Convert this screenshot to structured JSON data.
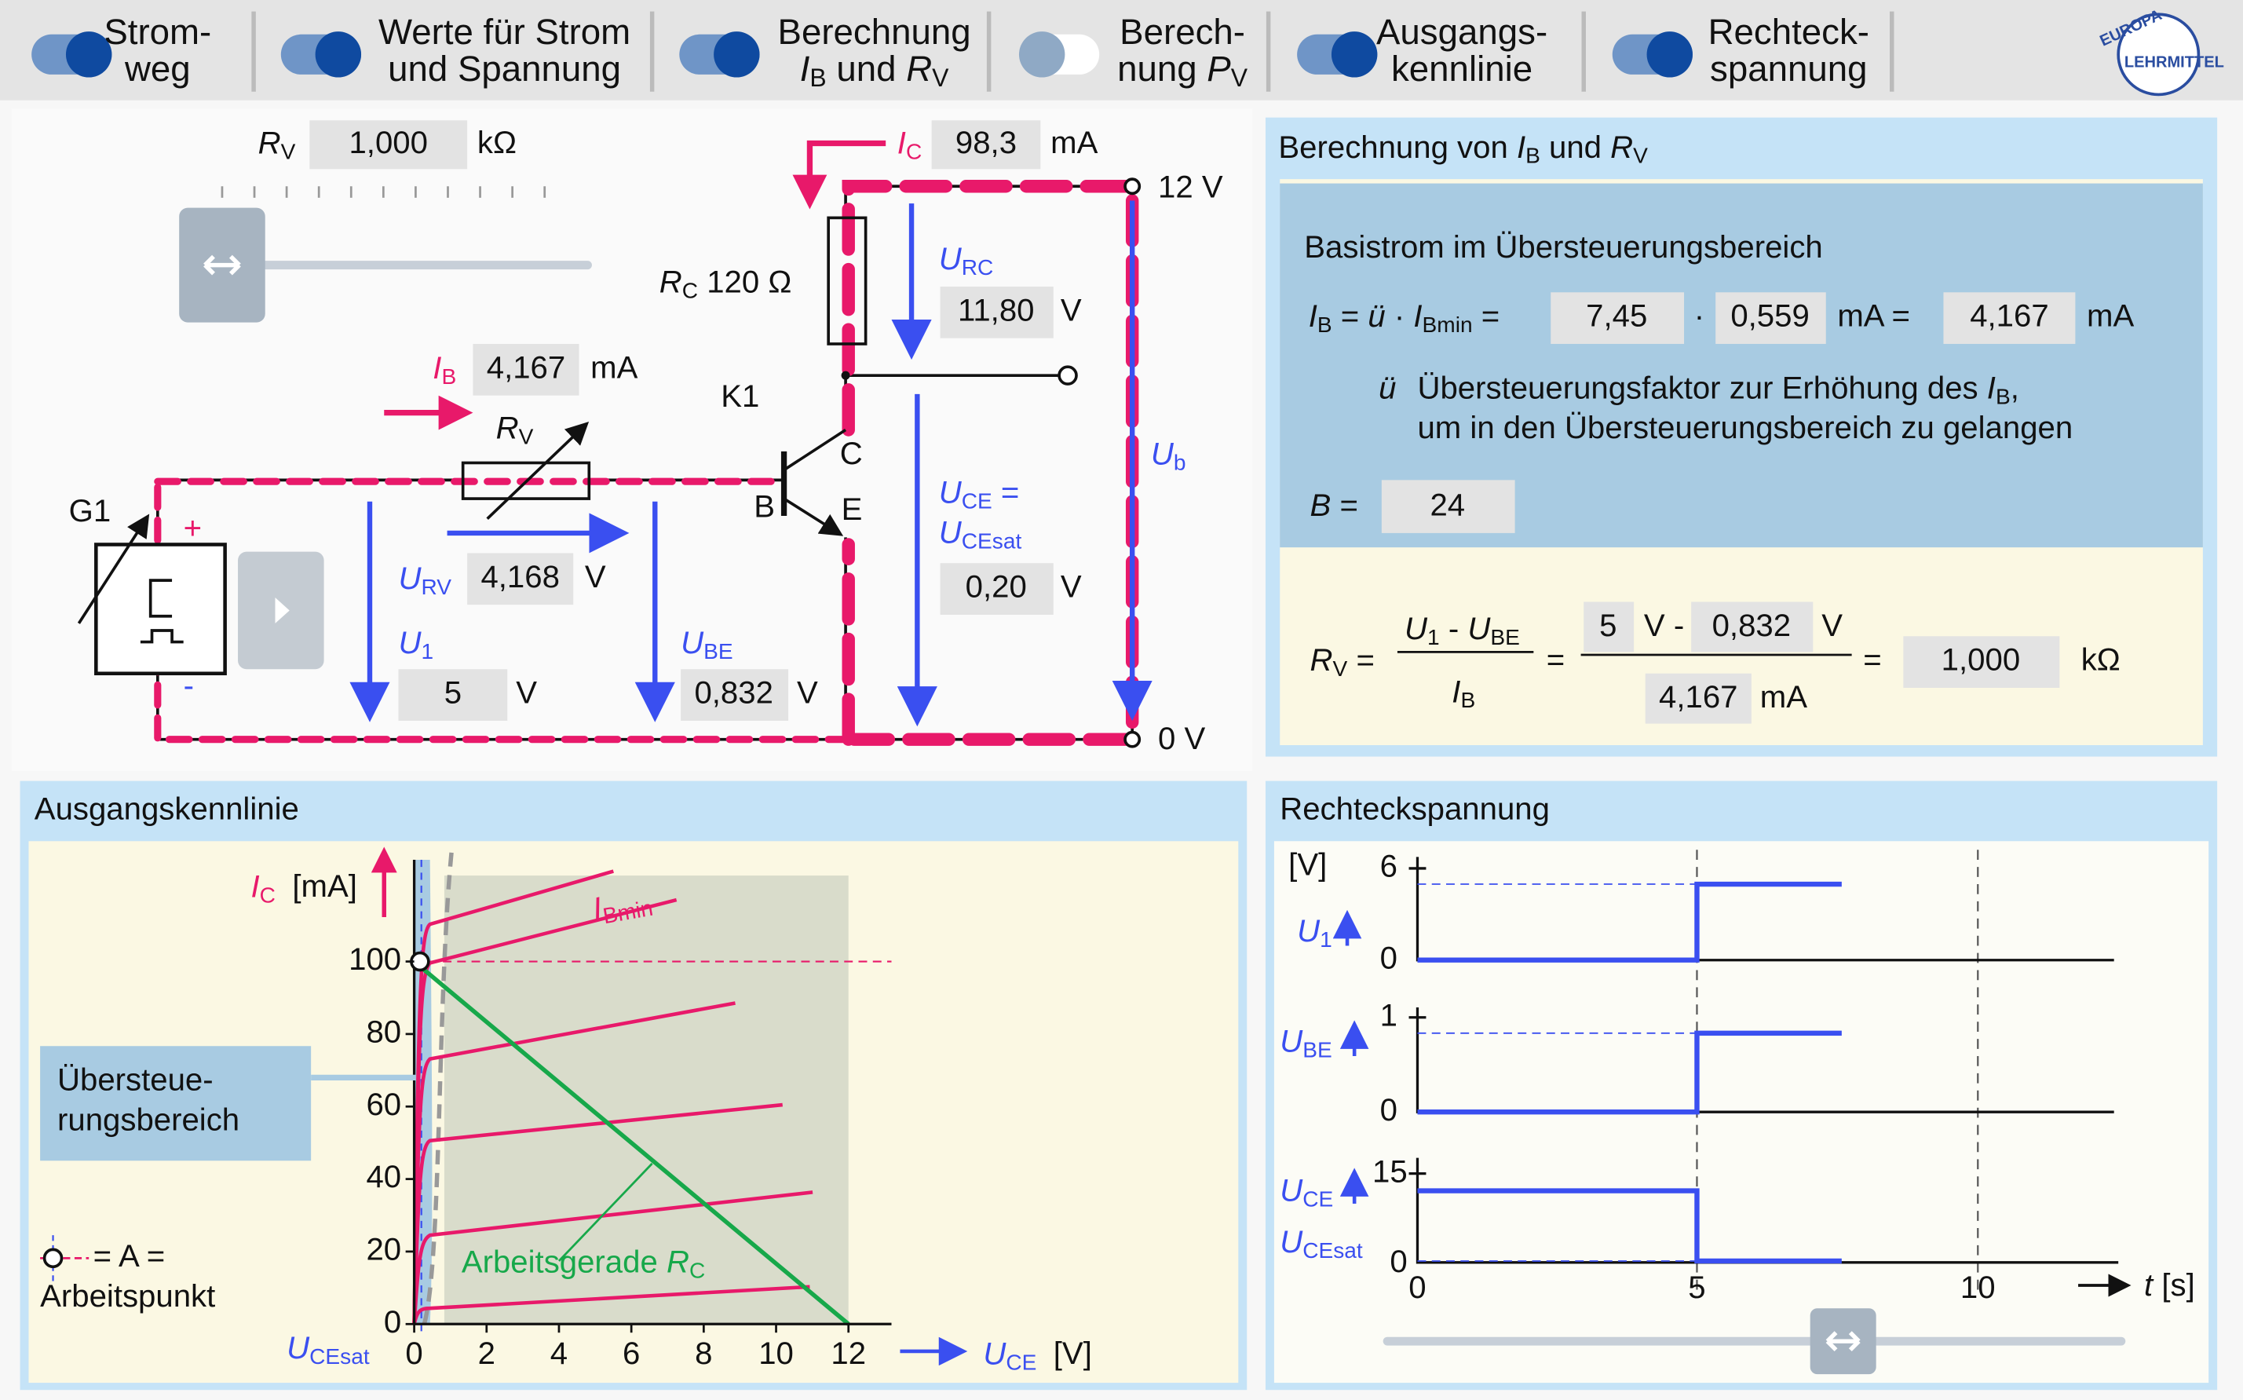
{
  "toolbar": {
    "toggles": [
      {
        "lines": [
          [
            "Strom-"
          ],
          [
            "weg"
          ]
        ],
        "on": true
      },
      {
        "lines": [
          [
            "Werte für Strom"
          ],
          [
            "und Spannung"
          ]
        ],
        "on": true
      },
      {
        "lines": [
          [
            "Berechnung"
          ],
          [
            [
              "I",
              "B"
            ],
            " und ",
            [
              "R",
              "V"
            ]
          ]
        ],
        "on": true
      },
      {
        "lines": [
          [
            "Berech-"
          ],
          [
            "nung ",
            [
              "P",
              "V"
            ]
          ]
        ],
        "on": false
      },
      {
        "lines": [
          [
            "Ausgangs-"
          ],
          [
            "kennlinie"
          ]
        ],
        "on": true
      },
      {
        "lines": [
          [
            "Rechteck-"
          ],
          [
            "spannung"
          ]
        ],
        "on": true
      }
    ],
    "logo": [
      "EUROPA",
      "LEHRMITTEL"
    ]
  },
  "circuit": {
    "rv_slider": {
      "label": [
        [
          "R",
          "V"
        ]
      ],
      "value": "1,000",
      "unit": "kΩ"
    },
    "ic": {
      "label": [
        [
          "I",
          "C"
        ]
      ],
      "value": "98,3",
      "unit": "mA"
    },
    "supply_top": "12 V",
    "supply_bottom": "0 V",
    "rc_label": [
      [
        "R",
        "C"
      ],
      " 120 Ω"
    ],
    "urc": {
      "label": [
        [
          "U",
          "RC"
        ]
      ],
      "value": "11,80",
      "unit": "V"
    },
    "ub": [
      [
        "U",
        "b"
      ]
    ],
    "ib": {
      "label": [
        [
          "I",
          "B"
        ]
      ],
      "value": "4,167",
      "unit": "mA"
    },
    "rv_label": [
      [
        "R",
        "V"
      ]
    ],
    "k1": "K1",
    "c": "C",
    "b": "B",
    "e": "E",
    "g1": "G1",
    "plus": "+",
    "minus": "-",
    "urv": {
      "label": [
        [
          "U",
          "RV"
        ]
      ],
      "value": "4,168",
      "unit": "V"
    },
    "u1": {
      "label": [
        [
          "U",
          "1"
        ]
      ],
      "value": "5",
      "unit": "V"
    },
    "ube": {
      "label": [
        [
          "U",
          "BE"
        ]
      ],
      "value": "0,832",
      "unit": "V"
    },
    "uce": {
      "lines": [
        [
          [
            "U",
            "CE"
          ],
          " ="
        ],
        [
          [
            "U",
            "CEsat"
          ]
        ]
      ],
      "value": "0,20",
      "unit": "V"
    }
  },
  "calc": {
    "title": [
      "Berechnung von ",
      [
        "I",
        "B"
      ],
      " und ",
      [
        "R",
        "V"
      ]
    ],
    "heading": "Basistrom im Übersteuerungsbereich",
    "ib_eq": [
      [
        "I",
        "B"
      ],
      " = ",
      [
        "ü"
      ],
      " · ",
      [
        "I",
        "Bmin"
      ],
      " ="
    ],
    "factor": "7,45",
    "dot": "·",
    "ibmin": "0,559",
    "unit_eq": "mA =",
    "ib": "4,167",
    "unit": "mA",
    "u_symbol": [
      [
        "ü"
      ]
    ],
    "u_text": [
      "Übersteuerungsfaktor zur Erhöhung des ",
      [
        "I",
        "B"
      ],
      ","
    ],
    "u_text2": "um in den Übersteuerungsbereich zu gelangen",
    "b_label": [
      [
        "B"
      ],
      " ="
    ],
    "b_value": "24",
    "rv_lhs": [
      [
        "R",
        "V"
      ],
      " ="
    ],
    "numerator": [
      [
        "U",
        "1"
      ],
      " - ",
      [
        "U",
        "BE"
      ]
    ],
    "denominator": [
      [
        "I",
        "B"
      ]
    ],
    "eq1": "=",
    "u1": "5",
    "v_minus": "V -",
    "ube": "0,832",
    "v": "V",
    "ib_den": "4,167",
    "ma": "mA",
    "eq2": "=",
    "rv": "1,000",
    "kohm": "kΩ"
  },
  "kennlinie": {
    "title": "Ausgangskennlinie",
    "y_symbol": [
      [
        "I",
        "C"
      ]
    ],
    "y_unit": "[mA]",
    "yticks": [
      "0",
      "20",
      "40",
      "60",
      "80",
      "100"
    ],
    "xticks": [
      "0",
      "2",
      "4",
      "6",
      "8",
      "10",
      "12"
    ],
    "x_symbol": [
      [
        "U",
        "CE"
      ]
    ],
    "x_unit": "[V]",
    "ucesat": [
      [
        "U",
        "CEsat"
      ]
    ],
    "ibmin": [
      [
        "I",
        "Bmin"
      ]
    ],
    "load_line": [
      "Arbeitsgerade ",
      [
        "R",
        "C"
      ]
    ],
    "region": [
      "Übersteue-",
      "rungsbereich"
    ],
    "legend": [
      "= A =",
      "Arbeitspunkt"
    ]
  },
  "rechteck": {
    "title": "Rechteckspannung",
    "unit": "[V]",
    "u1": {
      "label": [
        [
          "U",
          "1"
        ]
      ],
      "ticks": [
        "6",
        "0"
      ]
    },
    "ube": {
      "label": [
        [
          "U",
          "BE"
        ]
      ],
      "ticks": [
        "1",
        "0"
      ]
    },
    "uce": {
      "label": [
        [
          "U",
          "CE"
        ]
      ],
      "label2": [
        [
          "U",
          "CEsat"
        ]
      ],
      "ticks": [
        "15",
        "0"
      ]
    },
    "xticks": [
      "0",
      "5",
      "10"
    ],
    "x_label": [
      [
        "t"
      ],
      " [s]"
    ]
  }
}
